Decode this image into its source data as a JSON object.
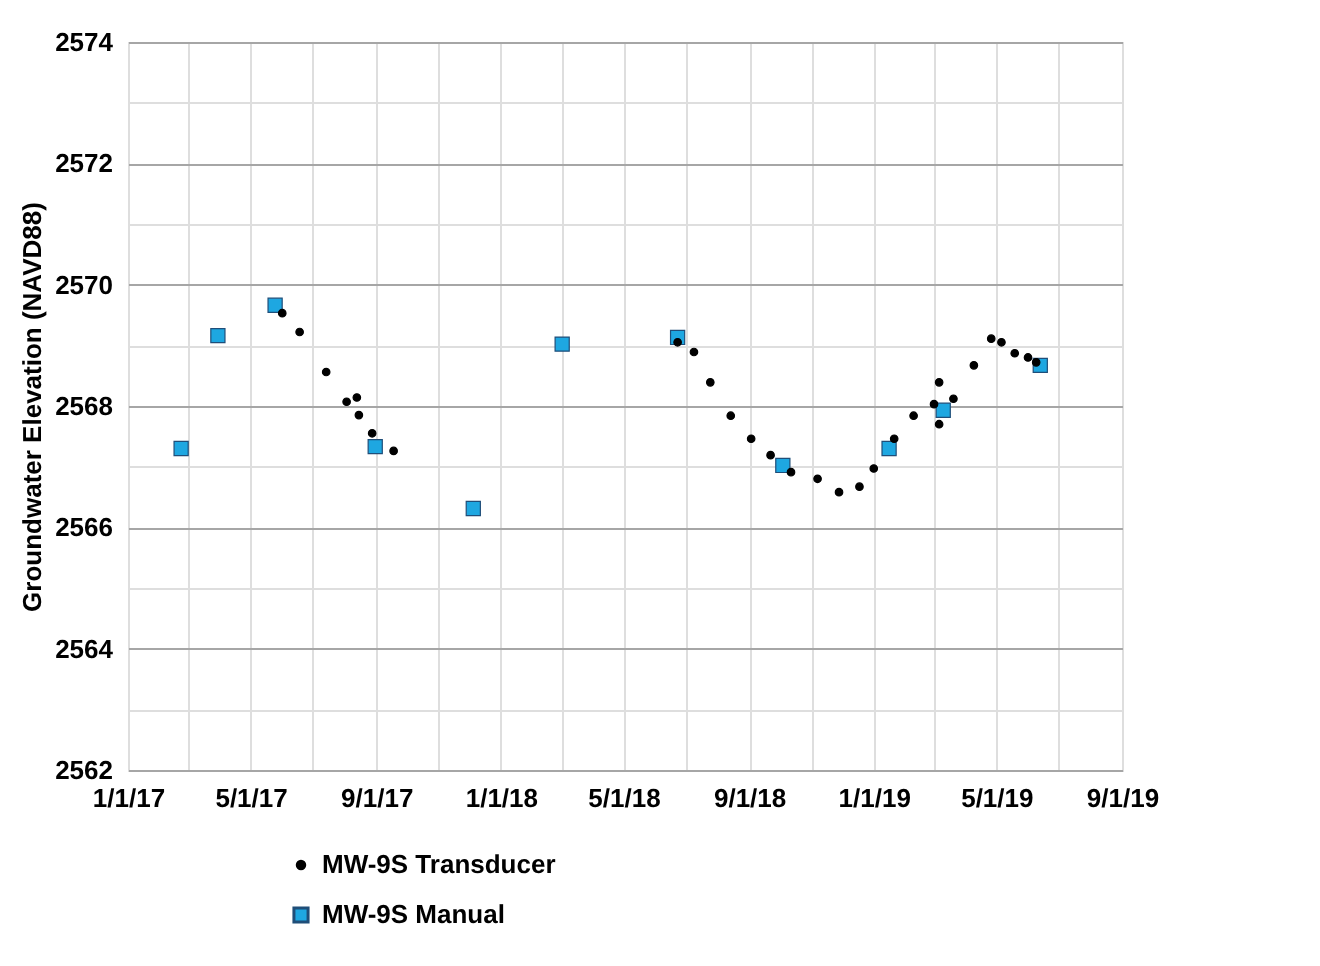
{
  "chart_data": {
    "type": "scatter",
    "ylabel": "Groundwater Elevation (NAVD88)",
    "ylim": [
      2562,
      2574
    ],
    "yticks": [
      {
        "value": 2562,
        "label": "2562"
      },
      {
        "value": 2563,
        "label": null
      },
      {
        "value": 2564,
        "label": "2564"
      },
      {
        "value": 2565,
        "label": null
      },
      {
        "value": 2566,
        "label": "2566"
      },
      {
        "value": 2567,
        "label": null
      },
      {
        "value": 2568,
        "label": "2568"
      },
      {
        "value": 2569,
        "label": null
      },
      {
        "value": 2570,
        "label": "2570"
      },
      {
        "value": 2571,
        "label": null
      },
      {
        "value": 2572,
        "label": "2572"
      },
      {
        "value": 2573,
        "label": null
      },
      {
        "value": 2574,
        "label": "2574"
      }
    ],
    "xlim": [
      "2017-01-01",
      "2019-09-01"
    ],
    "xticks": [
      {
        "value": "2017-01-01",
        "label": "1/1/17"
      },
      {
        "value": "2017-03-01",
        "label": null
      },
      {
        "value": "2017-05-01",
        "label": "5/1/17"
      },
      {
        "value": "2017-07-01",
        "label": null
      },
      {
        "value": "2017-09-01",
        "label": "9/1/17"
      },
      {
        "value": "2017-11-01",
        "label": null
      },
      {
        "value": "2018-01-01",
        "label": "1/1/18"
      },
      {
        "value": "2018-03-01",
        "label": null
      },
      {
        "value": "2018-05-01",
        "label": "5/1/18"
      },
      {
        "value": "2018-07-01",
        "label": null
      },
      {
        "value": "2018-09-01",
        "label": "9/1/18"
      },
      {
        "value": "2018-11-01",
        "label": null
      },
      {
        "value": "2019-01-01",
        "label": "1/1/19"
      },
      {
        "value": "2019-03-01",
        "label": null
      },
      {
        "value": "2019-05-01",
        "label": "5/1/19"
      },
      {
        "value": "2019-07-01",
        "label": null
      },
      {
        "value": "2019-09-01",
        "label": "9/1/19"
      }
    ],
    "grid": true,
    "legend": "bottom",
    "series": [
      {
        "name": "MW-9S Transducer",
        "color": "#000000",
        "marker": "circle",
        "x": [
          "2017-06-01",
          "2017-06-18",
          "2017-07-14",
          "2017-08-03",
          "2017-08-13",
          "2017-08-15",
          "2017-08-28",
          "2017-09-18",
          "2018-06-23",
          "2018-07-09",
          "2018-07-25",
          "2018-08-14",
          "2018-09-03",
          "2018-09-22",
          "2018-10-12",
          "2018-11-07",
          "2018-11-28",
          "2018-12-18",
          "2019-01-01",
          "2019-01-21",
          "2019-02-09",
          "2019-03-01",
          "2019-03-06",
          "2019-03-06",
          "2019-03-20",
          "2019-04-09",
          "2019-04-26",
          "2019-05-06",
          "2019-05-19",
          "2019-06-01",
          "2019-06-09"
        ],
        "values": [
          2569.53,
          2569.22,
          2568.56,
          2568.07,
          2568.14,
          2567.85,
          2567.55,
          2567.26,
          2569.05,
          2568.89,
          2568.39,
          2567.84,
          2567.46,
          2567.19,
          2566.91,
          2566.8,
          2566.58,
          2566.67,
          2566.97,
          2567.46,
          2567.84,
          2568.03,
          2568.39,
          2567.7,
          2568.12,
          2568.67,
          2569.11,
          2569.05,
          2568.87,
          2568.8,
          2568.72
        ]
      },
      {
        "name": "MW-9S Manual",
        "color": "#1ea7e1",
        "marker": "square",
        "x": [
          "2017-02-22",
          "2017-03-30",
          "2017-05-25",
          "2017-08-31",
          "2017-12-05",
          "2018-03-02",
          "2018-06-23",
          "2018-10-04",
          "2019-01-16",
          "2019-03-10",
          "2019-06-13"
        ],
        "values": [
          2567.3,
          2569.16,
          2569.66,
          2567.33,
          2566.31,
          2569.02,
          2569.13,
          2567.02,
          2567.3,
          2567.93,
          2568.67
        ]
      }
    ]
  }
}
